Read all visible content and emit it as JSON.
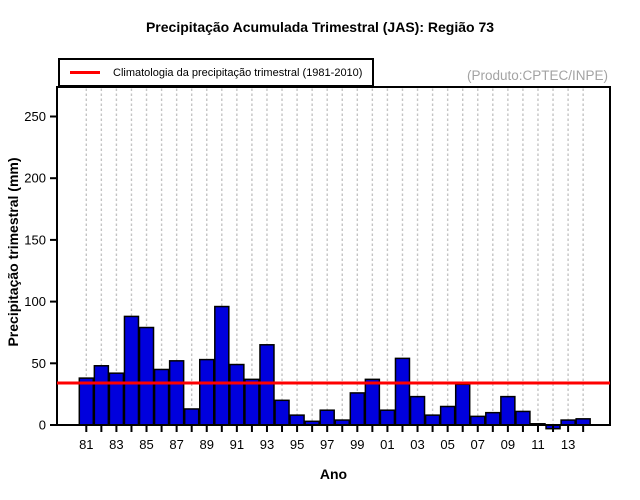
{
  "title": "Precipitação Acumulada Trimestral (JAS): Região 73",
  "watermark": "(Produto:CPTEC/INPE)",
  "legend": {
    "label": "Climatologia da precipitação trimestral (1981-2010)"
  },
  "axes": {
    "x_title": "Ano",
    "y_title": "Precipitação trimestral (mm)"
  },
  "colors": {
    "bar_fill": "#0000DD",
    "bar_stroke": "#000000",
    "climatology_line": "#FF0000",
    "gridline": "#C4C4C4",
    "axis": "#000000",
    "watermark_text": "#A3A3A3"
  },
  "chart_data": {
    "type": "bar",
    "title": "Precipitação Acumulada Trimestral (JAS): Região 73",
    "xlabel": "Ano",
    "ylabel": "Precipitação trimestral (mm)",
    "categories": [
      "1981",
      "1982",
      "1983",
      "1984",
      "1985",
      "1986",
      "1987",
      "1988",
      "1989",
      "1990",
      "1991",
      "1992",
      "1993",
      "1994",
      "1995",
      "1996",
      "1997",
      "1998",
      "1999",
      "2000",
      "2001",
      "2002",
      "2003",
      "2004",
      "2005",
      "2006",
      "2007",
      "2008",
      "2009",
      "2010",
      "2011",
      "2012",
      "2013",
      "2014"
    ],
    "values": [
      38,
      48,
      42,
      88,
      79,
      45,
      52,
      13,
      53,
      96,
      49,
      37,
      65,
      20,
      8,
      3,
      12,
      4,
      26,
      37,
      12,
      54,
      23,
      8,
      15,
      33,
      7,
      10,
      23,
      11,
      1,
      -3,
      4,
      5
    ],
    "x_tick_labels_shown": [
      "81",
      "83",
      "85",
      "87",
      "89",
      "91",
      "93",
      "95",
      "97",
      "99",
      "01",
      "03",
      "05",
      "07",
      "09",
      "11",
      "13"
    ],
    "yticks": [
      0,
      50,
      100,
      150,
      200,
      250
    ],
    "ylim": [
      -5,
      280
    ],
    "climatology_value": 34,
    "climatology_label": "Climatologia da precipitação trimestral (1981-2010)",
    "legend_position": "top-left",
    "annotation": "(Produto:CPTEC/INPE)",
    "grid": "vertical dashed gridline per year"
  }
}
